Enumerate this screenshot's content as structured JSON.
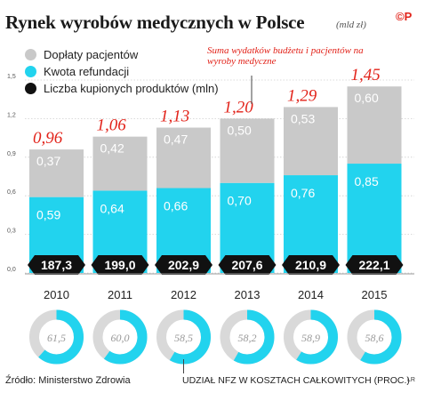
{
  "title": "Rynek wyrobów medycznych w Polsce",
  "unit": "(mld zł)",
  "logo": "©P",
  "annotation": "Suma wydatków budżetu i pacjentów na wyroby medyczne",
  "source": "Źródło: Ministerstwo Zdrowia",
  "donut_caption": "UDZIAŁ NFZ W KOSZTACH CAŁKOWITYCH (PROC.)",
  "author": "LR",
  "colors": {
    "patient": "#c9c9c9",
    "refund": "#22d3ee",
    "count": "#111111",
    "total": "#e2231a"
  },
  "legend": [
    {
      "label": "Dopłaty pacjentów",
      "color": "#c9c9c9"
    },
    {
      "label": "Kwota refundacji",
      "color": "#22d3ee"
    },
    {
      "label": "Liczba kupionych produktów (mln)",
      "color": "#111111"
    }
  ],
  "chart_data": {
    "type": "bar",
    "stacked": true,
    "categories": [
      "2010",
      "2011",
      "2012",
      "2013",
      "2014",
      "2015"
    ],
    "series": [
      {
        "name": "Kwota refundacji",
        "values": [
          0.59,
          0.64,
          0.66,
          0.7,
          0.76,
          0.85
        ],
        "labels": [
          "0,59",
          "0,64",
          "0,66",
          "0,70",
          "0,76",
          "0,85"
        ]
      },
      {
        "name": "Dopłaty pacjentów",
        "values": [
          0.37,
          0.42,
          0.47,
          0.5,
          0.53,
          0.6
        ],
        "labels": [
          "0,37",
          "0,42",
          "0,47",
          "0,50",
          "0,53",
          "0,60"
        ]
      }
    ],
    "totals": [
      0.96,
      1.06,
      1.13,
      1.2,
      1.29,
      1.45
    ],
    "total_labels": [
      "0,96",
      "1,06",
      "1,13",
      "1,20",
      "1,29",
      "1,45"
    ],
    "product_counts": [
      "187,3",
      "199,0",
      "202,9",
      "207,6",
      "210,9",
      "222,1"
    ],
    "nfz_share_pct": [
      61.5,
      60.0,
      58.5,
      58.2,
      58.9,
      58.6
    ],
    "nfz_share_labels": [
      "61,5",
      "60,0",
      "58,5",
      "58,2",
      "58,9",
      "58,6"
    ],
    "yticks": [
      0.0,
      0.3,
      0.6,
      0.9,
      1.2,
      1.5
    ],
    "ytick_labels": [
      "0,0",
      "0,3",
      "0,6",
      "0,9",
      "1,2",
      "1,5"
    ],
    "ylim": [
      0,
      1.5
    ],
    "grid": true
  }
}
